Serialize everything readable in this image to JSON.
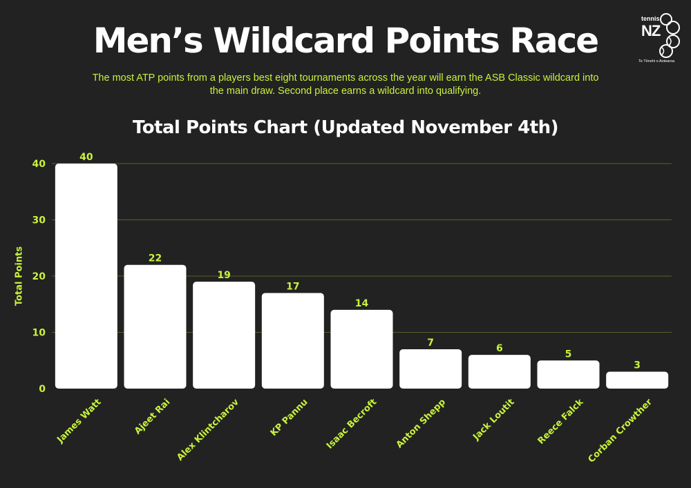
{
  "header": {
    "title": "Men’s Wildcard Points Race",
    "subtitle": "The most ATP points from a players best eight tournaments across the year will earn the ASB Classic wildcard into the main draw. Second place earns a wildcard into qualifying."
  },
  "logo": {
    "small_text": "tennis",
    "big_text": "NZ",
    "tagline": "Te Tēnehi o Aotearoa"
  },
  "colors": {
    "background": "#222222",
    "accent": "#c8f23c",
    "bar": "#ffffff",
    "grid": "#5a5f2a"
  },
  "chart_data": {
    "type": "bar",
    "title": "Total Points Chart (Updated November 4th)",
    "xlabel": "",
    "ylabel": "Total Points",
    "ylim": [
      0,
      40
    ],
    "yticks": [
      0,
      10,
      20,
      30,
      40
    ],
    "grid": true,
    "categories": [
      "James Watt",
      "Ajeet Rai",
      "Alex Klintcharov",
      "KP Pannu",
      "Isaac Becroft",
      "Anton Shepp",
      "Jack Loutit",
      "Reece Falck",
      "Corban Crowther"
    ],
    "values": [
      40,
      22,
      19,
      17,
      14,
      7,
      6,
      5,
      3
    ]
  }
}
